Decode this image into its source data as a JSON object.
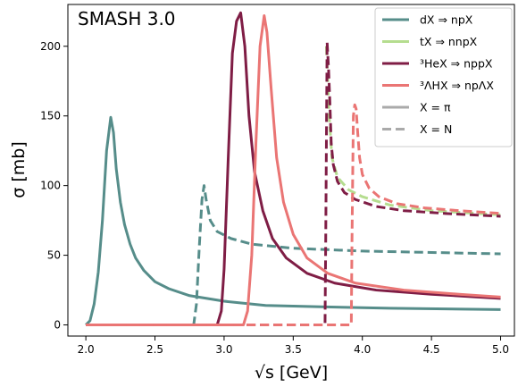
{
  "chart_data": {
    "type": "line",
    "title": "SMASH 3.0",
    "xlabel": "√s [GeV]",
    "ylabel": "σ [mb]",
    "xlim": [
      1.87,
      5.1
    ],
    "ylim": [
      -8,
      230
    ],
    "x_ticks": [
      "2.0",
      "2.5",
      "3.0",
      "3.5",
      "4.0",
      "4.5",
      "5.0"
    ],
    "y_ticks": [
      "0",
      "50",
      "100",
      "150",
      "200"
    ],
    "legend_position": "top-right",
    "grid": false,
    "legend": {
      "processes": [
        {
          "label": "dX ⇒ npX",
          "color": "#568d8a"
        },
        {
          "label": "tX ⇒ nnpX",
          "color": "#b5dd8f"
        },
        {
          "label": "³HeX ⇒ nppX",
          "color": "#7f1d45"
        },
        {
          "label": "³ΛHX ⇒ npΛX",
          "color": "#ea7574"
        }
      ],
      "styles": [
        {
          "label": "X = π",
          "dash": "solid",
          "color": "#aaaaaa"
        },
        {
          "label": "X = N",
          "dash": "dashed",
          "color": "#aaaaaa"
        }
      ]
    },
    "series": [
      {
        "process": "dX ⇒ npX",
        "style": "X = π",
        "color": "#568d8a",
        "dash": "solid",
        "x": [
          2.0,
          2.03,
          2.06,
          2.09,
          2.12,
          2.15,
          2.18,
          2.2,
          2.22,
          2.25,
          2.28,
          2.32,
          2.36,
          2.42,
          2.5,
          2.6,
          2.75,
          3.0,
          3.3,
          3.7,
          4.2,
          5.0
        ],
        "y": [
          0,
          3,
          15,
          38,
          75,
          125,
          149,
          138,
          112,
          88,
          72,
          58,
          48,
          39,
          31,
          26,
          21,
          17,
          14,
          13,
          12,
          11
        ]
      },
      {
        "process": "dX ⇒ npX",
        "style": "X = N",
        "color": "#568d8a",
        "dash": "dashed",
        "x": [
          2.0,
          2.78,
          2.8,
          2.82,
          2.84,
          2.855,
          2.87,
          2.9,
          2.95,
          3.05,
          3.2,
          3.5,
          4.0,
          4.5,
          5.0
        ],
        "y": [
          0,
          0,
          15,
          55,
          90,
          100,
          90,
          75,
          67,
          62,
          58,
          55,
          53,
          52,
          51
        ]
      },
      {
        "process": "tX ⇒ nnpX",
        "style": "X = N",
        "color": "#b5dd8f",
        "dash": "dashed",
        "x": [
          3.74,
          3.76,
          3.78,
          3.82,
          3.9,
          4.0,
          4.2,
          4.5,
          5.0
        ],
        "y": [
          200,
          150,
          120,
          106,
          97,
          92,
          86,
          82,
          79
        ]
      },
      {
        "process": "³HeX ⇒ nppX",
        "style": "X = π",
        "color": "#7f1d45",
        "dash": "solid",
        "x": [
          2.0,
          2.95,
          2.98,
          3.0,
          3.03,
          3.06,
          3.09,
          3.12,
          3.15,
          3.18,
          3.22,
          3.28,
          3.35,
          3.45,
          3.6,
          3.8,
          4.1,
          4.5,
          5.0
        ],
        "y": [
          0,
          0,
          10,
          40,
          120,
          195,
          218,
          224,
          200,
          150,
          110,
          82,
          62,
          48,
          37,
          30,
          25,
          22,
          19
        ]
      },
      {
        "process": "³HeX ⇒ nppX",
        "style": "X = N",
        "color": "#7f1d45",
        "dash": "dashed",
        "x": [
          2.0,
          3.73,
          3.735,
          3.745,
          3.755,
          3.765,
          3.775,
          3.79,
          3.82,
          3.87,
          3.95,
          4.1,
          4.3,
          4.6,
          5.0
        ],
        "y": [
          0,
          0,
          60,
          203,
          185,
          160,
          130,
          115,
          103,
          95,
          90,
          85,
          82,
          80,
          78
        ]
      },
      {
        "process": "³ΛHX ⇒ npΛX",
        "style": "X = π",
        "color": "#ea7574",
        "dash": "solid",
        "x": [
          2.0,
          3.14,
          3.17,
          3.2,
          3.23,
          3.26,
          3.29,
          3.31,
          3.34,
          3.38,
          3.43,
          3.5,
          3.6,
          3.75,
          3.95,
          4.3,
          4.7,
          5.0
        ],
        "y": [
          0,
          0,
          10,
          50,
          130,
          200,
          222,
          210,
          170,
          120,
          88,
          65,
          48,
          37,
          30,
          25,
          22,
          20
        ]
      },
      {
        "process": "³ΛHX ⇒ npΛX",
        "style": "X = N",
        "color": "#ea7574",
        "dash": "dashed",
        "x": [
          2.0,
          3.92,
          3.925,
          3.935,
          3.945,
          3.955,
          3.965,
          3.98,
          4.0,
          4.05,
          4.12,
          4.25,
          4.45,
          4.7,
          5.0
        ],
        "y": [
          0,
          0,
          60,
          150,
          158,
          155,
          140,
          120,
          108,
          98,
          92,
          87,
          84,
          82,
          80
        ]
      }
    ]
  }
}
